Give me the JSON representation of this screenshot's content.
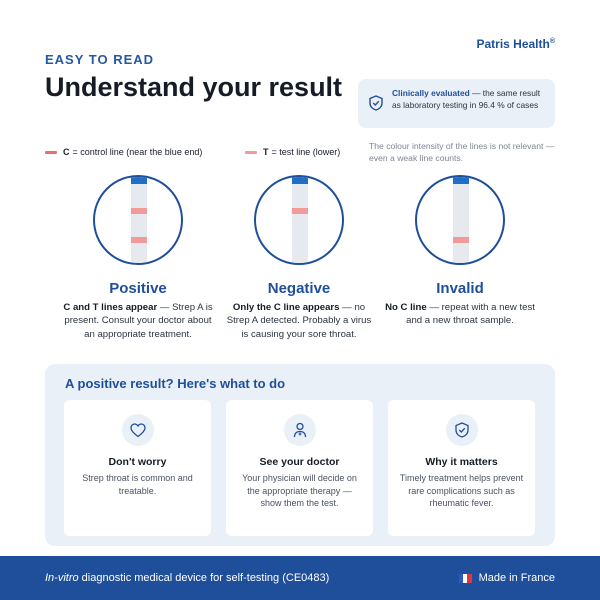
{
  "header": {
    "eyebrow": "EASY TO READ",
    "brand": "Patris Health",
    "brand_mark": "®",
    "title": "Understand your result"
  },
  "clinical": {
    "bold": "Clinically evaluated",
    "rest": " — the same result as laboratory testing in 96.4 % of cases",
    "icon": "shield-check-icon"
  },
  "note": "The colour intensity of the lines is not relevant — even a weak line counts.",
  "legend": {
    "c_key": "C",
    "c_text": " = control line (near the blue end)",
    "t_key": "T",
    "t_text": " = test line (lower)",
    "c_color": "#e8716f",
    "t_color": "#f29a9a"
  },
  "results": [
    {
      "title": "Positive",
      "bold": "C and T lines appear",
      "rest": " — Strep A is present. Consult your doctor about an appropriate treatment."
    },
    {
      "title": "Negative",
      "bold": "Only the C line appears",
      "rest": " — no Strep A detected. Probably a virus is causing your sore throat."
    },
    {
      "title": "Invalid",
      "bold": "No C line",
      "rest": " — repeat with a new test and a new throat sample."
    }
  ],
  "panel": {
    "title": "A positive result? Here's what to do",
    "cards": [
      {
        "icon": "heart-icon",
        "title": "Don't worry",
        "text": "Strep throat is common and treatable."
      },
      {
        "icon": "doctor-icon",
        "title": "See your doctor",
        "text": "Your physician will decide on the appropriate therapy — show them the test."
      },
      {
        "icon": "shield-check-icon",
        "title": "Why it matters",
        "text": "Timely treatment helps prevent rare complications such as rheumatic fever."
      }
    ]
  },
  "footer": {
    "italic": "In-vitro",
    "rest": " diagnostic medical device for self-testing (CE0483)",
    "made": "Made in France",
    "flag_icon": "france-flag-icon"
  },
  "colors": {
    "brand_blue": "#1f4f9a",
    "panel_bg": "#eaf0f8",
    "line_red": "#f29a9a"
  }
}
